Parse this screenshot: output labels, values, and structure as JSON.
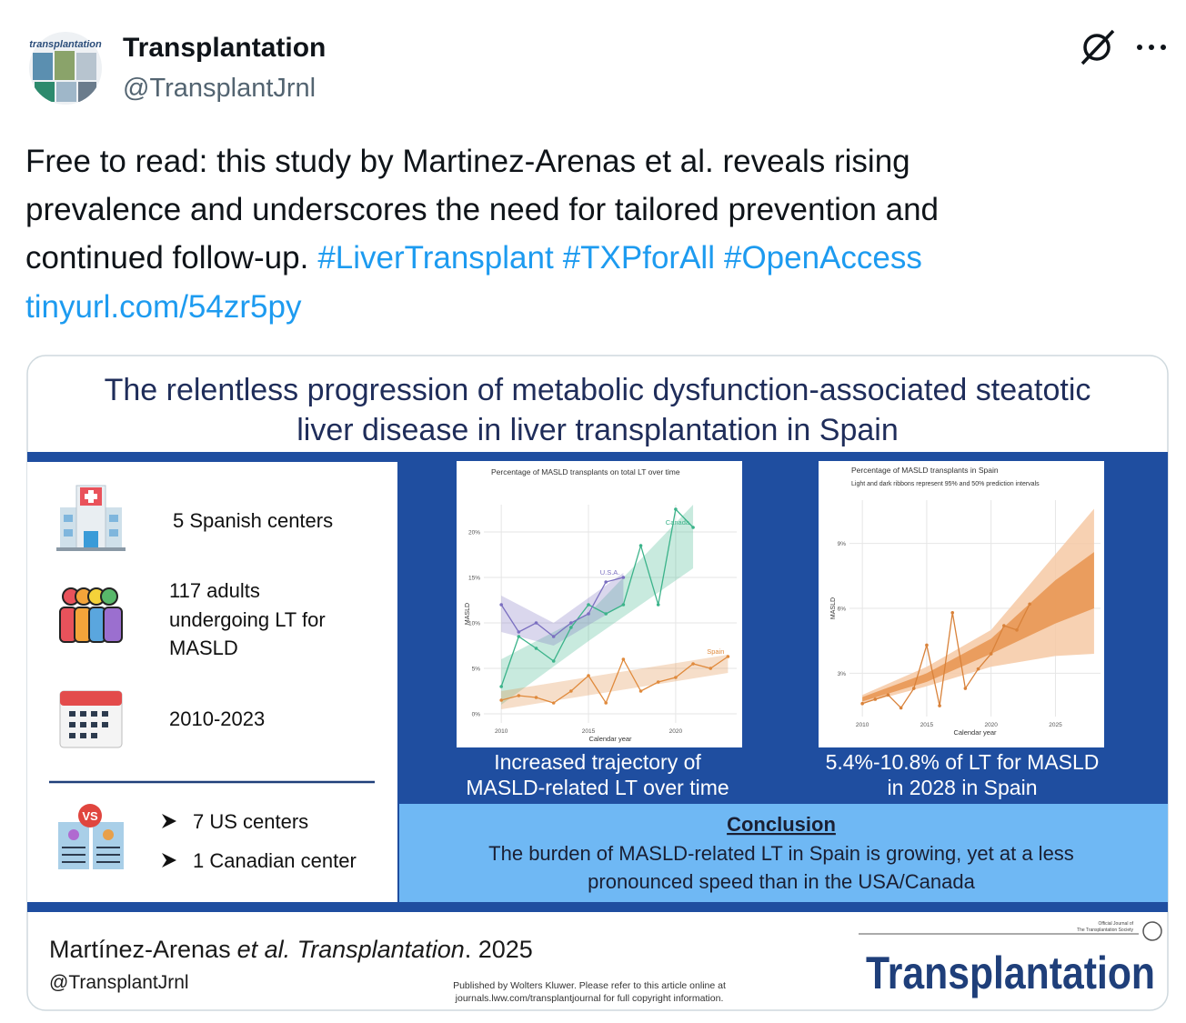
{
  "header": {
    "avatar_label": "transplantation",
    "name": "Transplantation",
    "handle": "@TransplantJrnl"
  },
  "tweet": {
    "text_lines": [
      "Free to read: this study by Martinez-Arenas et al. reveals rising",
      "prevalence and underscores the need for tailored prevention and",
      "continued follow-up."
    ],
    "hashtags": [
      "#LiverTransplant",
      "#TXPforAll",
      "#OpenAccess"
    ],
    "link": "tinyurl.com/54zr5py"
  },
  "abstract": {
    "title_lines": [
      "The relentless progression of metabolic dysfunction-associated steatotic",
      "liver disease in liver transplantation in Spain"
    ],
    "facts": [
      [
        "5 Spanish centers"
      ],
      [
        "117 adults",
        "undergoing LT for",
        "MASLD"
      ],
      [
        "2010-2023"
      ]
    ],
    "badge": "VS",
    "comparison": [
      "7 US centers",
      "1 Canadian center"
    ],
    "captions": [
      [
        "Increased trajectory of",
        "MASLD-related LT over time"
      ],
      [
        "5.4%-10.8% of LT for MASLD",
        "in 2028 in Spain"
      ]
    ],
    "conclusion": {
      "heading": "Conclusion",
      "text_lines": [
        "The burden of MASLD-related LT in Spain is growing, yet at a less",
        "pronounced speed than in the USA/Canada"
      ]
    },
    "footer": {
      "citation": {
        "author": "Martínez-Arenas",
        "italic": "et al. Transplantation",
        "rest": ". 2025"
      },
      "handle": "@TransplantJrnl",
      "publisher_note": [
        "Published by Wolters Kluwer. Please refer to this article online at",
        "journals.lww.com/transplantjournal for full copyright information."
      ],
      "logo_small": [
        "Official Journal of",
        "The Transplantation Society"
      ],
      "logo": "Transplantation"
    }
  },
  "chart_data": [
    {
      "type": "line",
      "title": "Percentage of MASLD transplants on total LT over time",
      "x_label": "Calendar year",
      "y_label": "MASLD",
      "x": [
        2010,
        2011,
        2012,
        2013,
        2014,
        2015,
        2016,
        2017,
        2018,
        2019,
        2020,
        2021,
        2022,
        2023
      ],
      "xlim": [
        2009,
        2023.5
      ],
      "ylim": [
        -1,
        23
      ],
      "xticks": [
        2010,
        2015,
        2020
      ],
      "yticks": [
        {
          "value": 0,
          "label": "0%"
        },
        {
          "value": 5,
          "label": "5%"
        },
        {
          "value": 10,
          "label": "10%"
        },
        {
          "value": 15,
          "label": "15%"
        },
        {
          "value": 20,
          "label": "20%"
        }
      ],
      "grid": true,
      "series": [
        {
          "name": "Canada",
          "color": "#3bb38a",
          "values": [
            3,
            8.5,
            7.2,
            5.8,
            9.5,
            12,
            11,
            12,
            18.5,
            12,
            22.5,
            20.5,
            null,
            null
          ],
          "band": {
            "x": [
              2010,
              2015,
              2021
            ],
            "lower": [
              1,
              8,
              16
            ],
            "upper": [
              6,
              11,
              23
            ]
          }
        },
        {
          "name": "U.S.A.",
          "color": "#7a6fc0",
          "values": [
            12,
            9,
            10,
            8.5,
            10,
            11,
            14.5,
            15,
            null,
            null,
            null,
            null,
            null,
            null
          ],
          "band": {
            "x": [
              2010,
              2013,
              2017
            ],
            "lower": [
              9,
              7.5,
              12
            ],
            "upper": [
              13,
              10,
              15.5
            ]
          }
        },
        {
          "name": "Spain",
          "color": "#e08a3c",
          "values": [
            1.5,
            2,
            1.8,
            1.2,
            2.5,
            4.2,
            1.2,
            6,
            2.5,
            3.5,
            4,
            5.5,
            5,
            6.3
          ],
          "band": {
            "x": [
              2010,
              2023
            ],
            "lower": [
              0.5,
              4.5
            ],
            "upper": [
              2.5,
              6.5
            ]
          }
        }
      ]
    },
    {
      "type": "line",
      "title": "Percentage of MASLD transplants in Spain",
      "subtitle": "Light and dark ribbons represent 95% and 50% prediction intervals",
      "x_label": "Calendar year",
      "y_label": "MASLD",
      "x": [
        2010,
        2011,
        2012,
        2013,
        2014,
        2015,
        2016,
        2017,
        2018,
        2019,
        2020,
        2021,
        2022,
        2023
      ],
      "xlim": [
        2009,
        2028.5
      ],
      "ylim": [
        1,
        11
      ],
      "xticks": [
        2010,
        2015,
        2020,
        2025
      ],
      "yticks": [
        {
          "value": 3,
          "label": "3%"
        },
        {
          "value": 6,
          "label": "6%"
        },
        {
          "value": 9,
          "label": "9%"
        }
      ],
      "grid": true,
      "bands": [
        {
          "color": "#f6c9a4",
          "x": [
            2010,
            2015,
            2020,
            2025,
            2028
          ],
          "lower": [
            1.6,
            2.4,
            3.3,
            3.8,
            3.9
          ],
          "upper": [
            2.0,
            3.3,
            5.0,
            8.5,
            10.6
          ]
        },
        {
          "color": "#e8944f",
          "x": [
            2010,
            2015,
            2020,
            2025,
            2028
          ],
          "lower": [
            1.7,
            2.6,
            3.9,
            5.3,
            6.0
          ],
          "upper": [
            1.9,
            3.0,
            4.6,
            7.3,
            8.6
          ]
        }
      ],
      "series": [
        {
          "color": "#d9823a",
          "values": [
            1.6,
            1.8,
            2.0,
            1.4,
            2.3,
            4.3,
            1.5,
            5.8,
            2.3,
            3.2,
            3.9,
            5.2,
            5.0,
            6.2
          ]
        }
      ]
    }
  ]
}
